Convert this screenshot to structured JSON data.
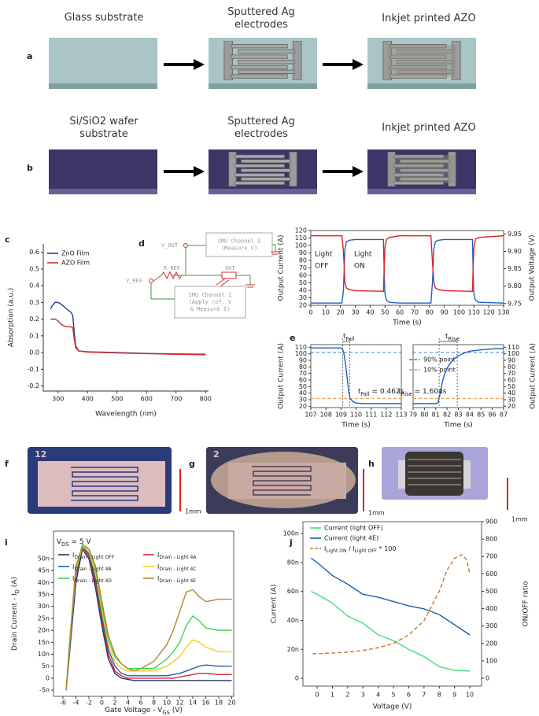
{
  "figure": {
    "panel_labels": [
      "a",
      "b",
      "c",
      "d",
      "e",
      "f",
      "g",
      "h",
      "i",
      "j"
    ],
    "a": {
      "steps": [
        [
          "Glass substrate"
        ],
        [
          "Sputtered Ag",
          "electrodes"
        ],
        [
          "Inkjet printed AZO"
        ]
      ]
    },
    "b": {
      "steps": [
        [
          "Si/SiO2 wafer",
          "substrate"
        ],
        [
          "Sputtered Ag",
          "electrodes"
        ],
        [
          "Inkjet printed AZO"
        ]
      ]
    },
    "d": {
      "v_out": "V_OUT",
      "smu2": [
        "SMU Channel 2",
        "(Measure V)"
      ],
      "r_ref": "R_REF",
      "out": "OUT",
      "v_ref": "V_REF",
      "smu1": [
        "SMU Channel 1",
        "(Apply ref. V",
        "& Measure I)"
      ]
    },
    "f": {
      "sample": "12",
      "scale": "1mm"
    },
    "g": {
      "sample": "2",
      "scale": "1mm"
    },
    "h": {
      "scale": "1mm"
    }
  },
  "chart_data": [
    {
      "type": "line",
      "xlabel": "Wavelength (nm)",
      "ylabel": "Absorption (a.u.)",
      "xlim": [
        250,
        810
      ],
      "ylim": [
        -0.23,
        0.65
      ],
      "xticks": [
        300,
        400,
        500,
        600,
        700,
        800
      ],
      "yticks": [
        -0.2,
        -0.1,
        {
          "value": 0,
          "label": "0.0"
        },
        0.1,
        0.2,
        0.3,
        0.4,
        0.5,
        0.6
      ],
      "series": [
        {
          "name": "ZnO Film",
          "color": "#1f3f8f",
          "x": [
            275,
            280,
            290,
            300,
            310,
            320,
            330,
            340,
            345,
            350,
            355,
            360,
            370,
            400,
            500,
            600,
            700,
            800
          ],
          "values": [
            0.26,
            0.28,
            0.3,
            0.3,
            0.29,
            0.275,
            0.26,
            0.245,
            0.24,
            0.22,
            0.12,
            0.04,
            0.01,
            0.005,
            0,
            -0.005,
            -0.008,
            -0.01
          ]
        },
        {
          "name": "AZO Film",
          "color": "#d42a2a",
          "x": [
            275,
            280,
            290,
            300,
            310,
            320,
            330,
            340,
            350,
            355,
            360,
            370,
            400,
            500,
            600,
            700,
            800
          ],
          "values": [
            0.2,
            0.2,
            0.2,
            0.19,
            0.17,
            0.16,
            0.155,
            0.155,
            0.15,
            0.08,
            0.03,
            0.01,
            0.003,
            -0.002,
            -0.006,
            -0.01,
            -0.013
          ]
        }
      ]
    },
    {
      "type": "line",
      "xlabel": "Time (s)",
      "ylabel": "Output Current (A)",
      "y2label": "Output Voltage (V)",
      "xlim": [
        0,
        130
      ],
      "ylim": [
        20,
        120
      ],
      "y2lim": [
        9.745,
        9.96
      ],
      "xticks": [
        0,
        10,
        20,
        30,
        40,
        50,
        60,
        70,
        80,
        90,
        100,
        110,
        120,
        130
      ],
      "yticks": [
        20,
        30,
        40,
        50,
        60,
        70,
        80,
        90,
        100,
        110,
        120
      ],
      "y2ticks": [
        9.75,
        {
          "value": 9.8,
          "label": "9.80"
        },
        9.85,
        {
          "value": 9.9,
          "label": "9.90"
        },
        9.95
      ],
      "annotations": [
        [
          "Light",
          "OFF"
        ],
        [
          "Light",
          "ON"
        ]
      ],
      "x": [
        0,
        21,
        22,
        23,
        24,
        26,
        30,
        49,
        49.5,
        50,
        51,
        53,
        60,
        81,
        82,
        83,
        84,
        86,
        90,
        109,
        109.5,
        110,
        111,
        113,
        130
      ],
      "series": [
        {
          "color": "#1f5fbf",
          "values": [
            23,
            23,
            40,
            95,
            105,
            107,
            108,
            108,
            60,
            35,
            27,
            24,
            23,
            23,
            50,
            95,
            105,
            107,
            108,
            108,
            60,
            35,
            27,
            24,
            23
          ]
        },
        {
          "color": "#e02020",
          "axis": "y2",
          "values": [
            9.945,
            9.945,
            9.9,
            9.81,
            9.795,
            9.79,
            9.787,
            9.785,
            9.86,
            9.91,
            9.935,
            9.94,
            9.945,
            9.945,
            9.87,
            9.81,
            9.795,
            9.79,
            9.787,
            9.785,
            9.86,
            9.91,
            9.935,
            9.94,
            9.945
          ]
        }
      ]
    },
    {
      "type": "line",
      "xlabel": "Time (s)",
      "ylabel": "Output Current (A)",
      "xlim": [
        107,
        113
      ],
      "ylim": [
        18,
        114
      ],
      "xticks": [
        107,
        108,
        109,
        110,
        111,
        112,
        113
      ],
      "yticks": [
        20,
        30,
        40,
        50,
        60,
        70,
        80,
        90,
        100,
        110
      ],
      "annotations": [
        [
          "t",
          "Fall"
        ],
        [
          "t",
          "Fall",
          " = 0.462s"
        ]
      ],
      "hlines": [
        {
          "name": "90% point",
          "value": 102,
          "color": "#3a7fc4"
        },
        {
          "name": "10% point",
          "value": 32,
          "color": "#e8923a"
        }
      ],
      "vlines": [
        109.12,
        109.58
      ],
      "series": [
        {
          "color": "#1f5fbf",
          "x": [
            107,
            109,
            109.1,
            109.2,
            109.3,
            109.4,
            109.5,
            109.6,
            109.8,
            110,
            110.5,
            111,
            113
          ],
          "values": [
            109,
            109,
            108,
            100,
            85,
            65,
            45,
            32,
            27,
            25,
            24,
            24,
            24
          ]
        }
      ]
    },
    {
      "type": "line",
      "xlabel": "Time (s)",
      "ylabel": "Output Current (A)",
      "xlim": [
        79,
        87
      ],
      "ylim": [
        18,
        114
      ],
      "xticks": [
        79,
        80,
        81,
        82,
        83,
        84,
        85,
        86,
        87
      ],
      "yticks": [
        20,
        30,
        40,
        50,
        60,
        70,
        80,
        90,
        100,
        110
      ],
      "annotations": [
        [
          "t",
          "Rise"
        ],
        [
          "t",
          "Rise",
          " = 1.604s"
        ]
      ],
      "hlines": [
        {
          "value": 102,
          "color": "#3a7fc4"
        },
        {
          "value": 32,
          "color": "#e8923a"
        }
      ],
      "vlines": [
        81.3,
        82.9
      ],
      "series": [
        {
          "color": "#1f5fbf",
          "x": [
            79,
            81,
            81.2,
            81.4,
            81.6,
            81.8,
            82,
            82.3,
            82.6,
            83,
            83.5,
            84,
            85,
            86,
            87
          ],
          "values": [
            24,
            24,
            25,
            40,
            58,
            70,
            78,
            86,
            92,
            97,
            101,
            104,
            106,
            107.5,
            108
          ]
        }
      ]
    },
    {
      "type": "line",
      "xlabel": [
        "Gate Voltage - V",
        "GS",
        " (V)"
      ],
      "ylabel": [
        "Drain Current - I",
        "D",
        " (A)"
      ],
      "annotations": [
        [
          "V",
          "DS",
          " = 5 V"
        ]
      ],
      "xlim": [
        -7.45,
        20.3
      ],
      "ylim": [
        -7.6e-09,
        6.15e-08
      ],
      "xticks": [
        -6,
        -4,
        -2,
        0,
        2,
        4,
        6,
        8,
        10,
        12,
        14,
        16,
        18,
        20
      ],
      "yticks": [
        {
          "value": -5e-09,
          "label": "-5n"
        },
        0,
        {
          "value": 5e-09,
          "label": "5n"
        },
        {
          "value": 1e-08,
          "label": "10n"
        },
        {
          "value": 1.5e-08,
          "label": "15n"
        },
        {
          "value": 2e-08,
          "label": "20n"
        },
        {
          "value": 2.5e-08,
          "label": "25n"
        },
        {
          "value": 3e-08,
          "label": "30n"
        },
        {
          "value": 3.5e-08,
          "label": "35n"
        },
        {
          "value": 4e-08,
          "label": "40n"
        },
        {
          "value": 4.5e-08,
          "label": "45n"
        },
        {
          "value": 5e-08,
          "label": "50n"
        }
      ],
      "x": [
        -5.5,
        -5,
        -4,
        -3,
        -2,
        -1,
        0,
        1,
        2,
        3,
        4,
        5,
        6,
        8,
        10,
        11,
        12,
        13,
        14,
        15,
        16,
        18,
        20
      ],
      "series": [
        {
          "name": [
            "I",
            "Drain - Light OFF"
          ],
          "color": "#1f2f5e",
          "values": [
            -5e-09,
            1e-08,
            4e-08,
            5.4e-08,
            5e-08,
            3.8e-08,
            2.2e-08,
            8e-09,
            2e-09,
            0,
            -5e-10,
            -1e-09,
            -1e-09,
            -1e-09,
            -1e-09,
            -1e-09,
            -1e-09,
            -1e-09,
            -1e-09,
            -1e-09,
            -1e-09,
            -1e-09,
            -1e-09
          ]
        },
        {
          "name": [
            "I",
            "Drain - Light 4A"
          ],
          "color": "#e0203a",
          "values": [
            -5e-09,
            1.2e-08,
            4.3e-08,
            5.5e-08,
            5.1e-08,
            4e-08,
            2.4e-08,
            1e-08,
            3e-09,
            1e-09,
            0,
            0,
            0,
            0,
            0,
            0,
            5e-10,
            1e-09,
            1.5e-09,
            2e-09,
            2e-09,
            1.5e-09,
            1.5e-09
          ]
        },
        {
          "name": [
            "I",
            "Drain - Light 4B"
          ],
          "color": "#1f5fa6",
          "values": [
            -5e-09,
            1.2e-08,
            4.4e-08,
            5.5e-08,
            5.2e-08,
            4.2e-08,
            2.6e-08,
            1.2e-08,
            5e-09,
            2e-09,
            1e-09,
            1e-09,
            1e-09,
            1e-09,
            1e-09,
            1.5e-09,
            2e-09,
            3e-09,
            4e-09,
            5e-09,
            5.5e-09,
            5e-09,
            5e-09
          ]
        },
        {
          "name": [
            "I",
            "Drain - Light 4C"
          ],
          "color": "#f0d020",
          "values": [
            -5e-09,
            1.3e-08,
            4.5e-08,
            5.5e-08,
            5.3e-08,
            4.4e-08,
            2.8e-08,
            1.4e-08,
            7e-09,
            4e-09,
            3e-09,
            3e-09,
            3e-09,
            3e-09,
            5e-09,
            7e-09,
            9e-09,
            1.3e-08,
            1.6e-08,
            1.5e-08,
            1.3e-08,
            1.1e-08,
            1.1e-08
          ]
        },
        {
          "name": [
            "I",
            "Drain - Light 4D"
          ],
          "color": "#40d060",
          "values": [
            -5e-09,
            1.3e-08,
            4.6e-08,
            5.6e-08,
            5.4e-08,
            4.6e-08,
            3e-08,
            1.6e-08,
            9e-09,
            6e-09,
            4e-09,
            4e-09,
            4e-09,
            4e-09,
            8e-09,
            1.1e-08,
            1.5e-08,
            2.2e-08,
            2.6e-08,
            2.4e-08,
            2.1e-08,
            2e-08,
            2e-08
          ]
        },
        {
          "name": [
            "I",
            "Drain - Light 4E"
          ],
          "color": "#b8862a",
          "values": [
            -5e-09,
            1.4e-08,
            4.7e-08,
            5.5e-08,
            5.4e-08,
            4.7e-08,
            3.2e-08,
            1.8e-08,
            1e-08,
            6e-09,
            4e-09,
            3e-09,
            4e-09,
            7e-09,
            1.4e-08,
            2e-08,
            2.8e-08,
            3.6e-08,
            3.7e-08,
            3.4e-08,
            3.2e-08,
            3.3e-08,
            3.3e-08
          ]
        }
      ]
    },
    {
      "type": "line",
      "xlabel": "Voltage (V)",
      "ylabel": "Current (A)",
      "y2label": "ON/OFF ratio",
      "xlim": [
        -0.93,
        10.77
      ],
      "ylim": [
        -5.4e-09,
        1.082e-07
      ],
      "y2lim": [
        -45,
        900
      ],
      "xticks": [
        0,
        1,
        2,
        3,
        4,
        5,
        6,
        7,
        8,
        9,
        10
      ],
      "yticks": [
        0,
        {
          "value": 2e-08,
          "label": "20n"
        },
        {
          "value": 4e-08,
          "label": "40n"
        },
        {
          "value": 6e-08,
          "label": "60n"
        },
        {
          "value": 8e-08,
          "label": "80n"
        },
        {
          "value": 1e-07,
          "label": "100n"
        }
      ],
      "y2ticks": [
        0,
        100,
        200,
        300,
        400,
        500,
        600,
        700,
        800,
        900
      ],
      "x": [
        -0.4,
        0,
        1,
        2,
        3,
        4,
        5,
        6,
        7,
        8,
        9,
        10
      ],
      "series": [
        {
          "name": "Current (light OFF)",
          "color": "#3ee07a",
          "values": [
            6e-08,
            5.8e-08,
            5.2e-08,
            4.3e-08,
            3.8e-08,
            3e-08,
            2.6e-08,
            2e-08,
            1.5e-08,
            8e-09,
            5.5e-09,
            5e-09
          ]
        },
        {
          "name": "Current (light 4E)",
          "color": "#1f5fa6",
          "values": [
            8.3e-08,
            8e-08,
            7.1e-08,
            6.5e-08,
            5.8e-08,
            5.6e-08,
            5.3e-08,
            5e-08,
            4.8e-08,
            4.4e-08,
            3.7e-08,
            3e-08
          ]
        },
        {
          "name": [
            "I",
            "Light ON",
            " / I",
            "Light OFF",
            " * 100"
          ],
          "color": "#c87820",
          "line_style": "dashed",
          "axis": "y2",
          "x": [
            -0.3,
            1,
            2,
            3,
            4,
            5,
            6,
            7,
            8,
            8.5,
            9,
            9.5,
            9.8,
            10
          ],
          "values": [
            140,
            145,
            150,
            160,
            175,
            200,
            250,
            330,
            500,
            620,
            690,
            710,
            680,
            600
          ]
        }
      ]
    }
  ]
}
